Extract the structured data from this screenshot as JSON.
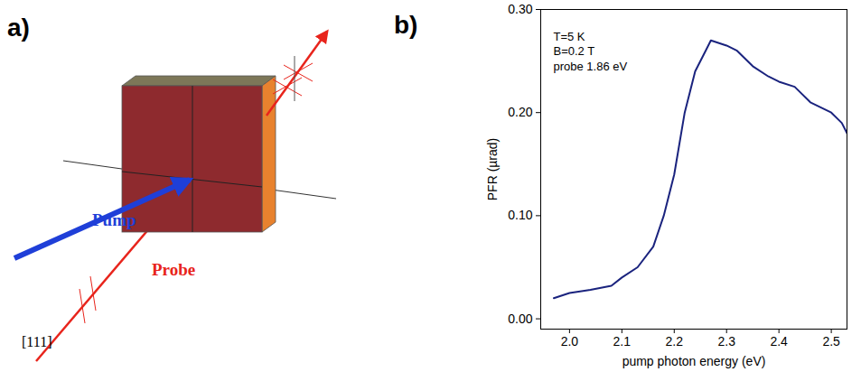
{
  "diagram": {
    "panel_label": "a)",
    "pump_label": "Pump",
    "probe_label": "Probe",
    "axis_label": "[111]"
  },
  "chart_data": {
    "type": "line",
    "panel_label": "b)",
    "annotations": [
      "T=5 K",
      "B=0.2 T",
      "probe 1.86 eV"
    ],
    "x_label": "pump photon energy (eV)",
    "y_label": "PFR (µrad)",
    "x": [
      1.97,
      2.0,
      2.04,
      2.08,
      2.1,
      2.13,
      2.16,
      2.18,
      2.2,
      2.22,
      2.24,
      2.26,
      2.27,
      2.3,
      2.32,
      2.35,
      2.38,
      2.4,
      2.43,
      2.46,
      2.5,
      2.52,
      2.53
    ],
    "values": [
      0.02,
      0.025,
      0.028,
      0.032,
      0.04,
      0.05,
      0.07,
      0.1,
      0.14,
      0.2,
      0.24,
      0.26,
      0.27,
      0.265,
      0.26,
      0.245,
      0.235,
      0.23,
      0.225,
      0.21,
      0.2,
      0.19,
      0.18
    ],
    "color": "#1a237e",
    "xlim": [
      1.945,
      2.53
    ],
    "ylim": [
      -0.01,
      0.3
    ],
    "xticks": [
      {
        "value": 2,
        "label": "2.0"
      },
      2.1,
      2.2,
      2.3,
      2.4,
      2.5
    ],
    "yticks": [
      {
        "value": 0,
        "label": "0.00"
      },
      {
        "value": 0.1,
        "label": "0.10"
      },
      {
        "value": 0.2,
        "label": "0.20"
      },
      {
        "value": 0.3,
        "label": "0.30"
      }
    ],
    "grid": false
  }
}
